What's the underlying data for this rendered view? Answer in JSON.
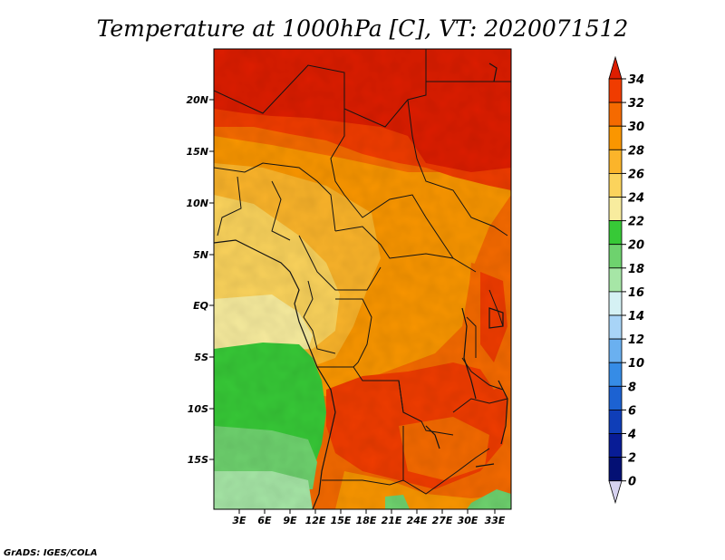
{
  "title": "Temperature at 1000hPa [C], VT: 2020071512",
  "credit": "GrADS: IGES/COLA",
  "map": {
    "lon_labels": [
      "3E",
      "6E",
      "9E",
      "12E",
      "15E",
      "18E",
      "21E",
      "24E",
      "27E",
      "30E",
      "33E"
    ],
    "lat_labels": [
      "20N",
      "15N",
      "10N",
      "5N",
      "EQ",
      "5S",
      "10S",
      "15S"
    ]
  },
  "colorbar": {
    "labels": [
      "34",
      "32",
      "30",
      "28",
      "26",
      "24",
      "22",
      "20",
      "18",
      "16",
      "14",
      "12",
      "10",
      "8",
      "6",
      "4",
      "2",
      "0"
    ],
    "colors": [
      "#dd1d00",
      "#f03c00",
      "#f56a00",
      "#fa9600",
      "#fbb42a",
      "#fbd35c",
      "#f8ec9e",
      "#37c937",
      "#6ed26e",
      "#a6e6a6",
      "#d5f1f4",
      "#a8d4f7",
      "#6ab0f0",
      "#368ce6",
      "#1c62d2",
      "#0f3eb8",
      "#081c96",
      "#041074"
    ]
  },
  "chart_data": {
    "type": "heatmap",
    "title": "Temperature at 1000hPa [C], VT: 2020071512",
    "variable": "Temperature at 1000hPa",
    "units": "C",
    "valid_time": "2020071512",
    "levels": [
      0,
      2,
      4,
      6,
      8,
      10,
      12,
      14,
      16,
      18,
      20,
      22,
      24,
      26,
      28,
      30,
      32,
      34
    ],
    "lon_range": [
      0,
      35
    ],
    "lat_range": [
      -20,
      25
    ]
  }
}
